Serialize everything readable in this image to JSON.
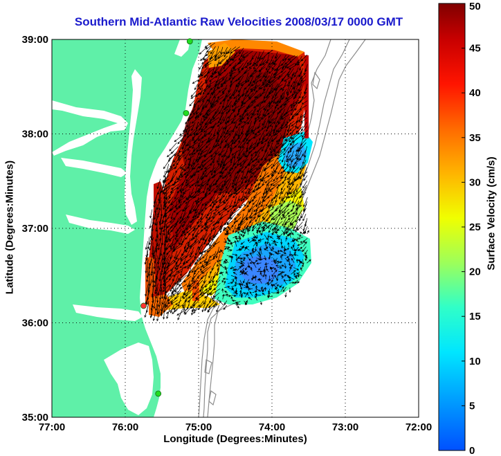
{
  "map": {
    "title": "Southern Mid-Atlantic Raw Velocities 2008/03/17 0000 GMT",
    "xlabel": "Longitude (Degrees:Minutes)",
    "ylabel": "Latitude (Degrees:Minutes)",
    "lon_ticks": [
      "77:00",
      "76:00",
      "75:00",
      "74:00",
      "73:00",
      "72:00"
    ],
    "lat_ticks": [
      "39:00",
      "38:00",
      "37:00",
      "36:00",
      "35:00"
    ],
    "lon_range": [
      -77,
      -72
    ],
    "lat_range": [
      35,
      39
    ],
    "land_color": "#5ff0a8",
    "stations": [
      {
        "lon": -75.12,
        "lat": 38.98,
        "color": "#22dd22"
      },
      {
        "lon": -75.17,
        "lat": 38.22,
        "color": "#22dd22"
      },
      {
        "lon": -75.75,
        "lat": 36.18,
        "color": "#ff3333"
      },
      {
        "lon": -75.55,
        "lat": 35.25,
        "color": "#22dd22"
      }
    ]
  },
  "colorbar": {
    "label": "Surface Velocity (cm/s)",
    "ticks": [
      "0",
      "5",
      "10",
      "15",
      "20",
      "25",
      "30",
      "35",
      "40",
      "45",
      "50"
    ],
    "min": 0,
    "max": 50
  }
}
